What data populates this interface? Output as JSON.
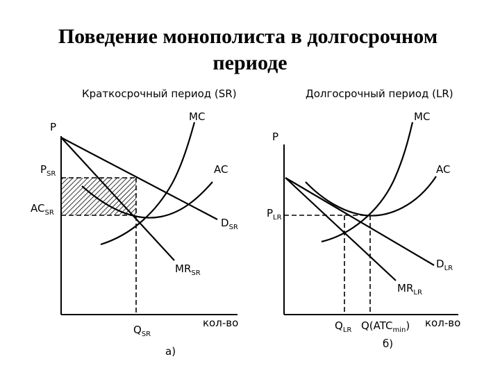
{
  "title": {
    "line1": "Поведение монополиста в долгосрочном",
    "line2": "периоде"
  },
  "panel_a": {
    "heading": "Краткосрочный период (SR)",
    "y_axis": "P",
    "x_axis": "кол-во",
    "curves": {
      "mc": "MC",
      "ac": "AC",
      "d": "D",
      "d_sub": "SR",
      "mr": "MR",
      "mr_sub": "SR"
    },
    "price_label": "P",
    "price_sub": "SR",
    "cost_label": "AC",
    "cost_sub": "SR",
    "qty_label": "Q",
    "qty_sub": "SR",
    "caption": "a)"
  },
  "panel_b": {
    "heading": "Долгосрочный период (LR)",
    "y_axis": "P",
    "x_axis": "кол-во",
    "curves": {
      "mc": "MC",
      "ac": "AC",
      "d": "D",
      "d_sub": "LR",
      "mr": "MR",
      "mr_sub": "LR"
    },
    "price_label": "P",
    "price_sub": "LR",
    "qty_label": "Q",
    "qty_sub": "LR",
    "qmin_label": "Q(ATC",
    "qmin_sub": "min",
    "qmin_close": ")",
    "caption": "б)"
  }
}
